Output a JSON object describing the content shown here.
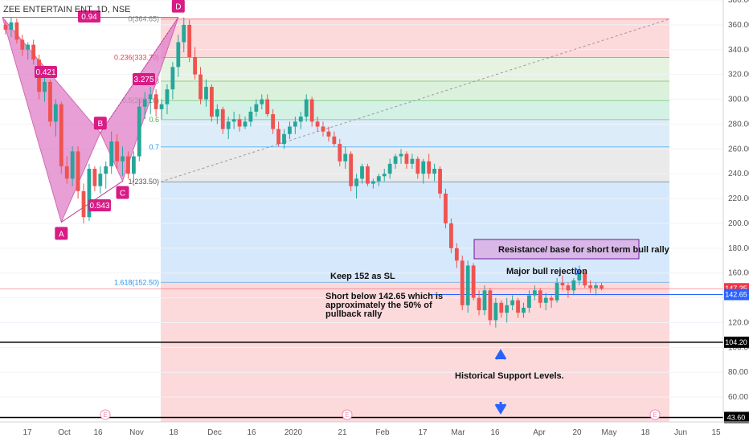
{
  "chart_data": {
    "type": "candlestick",
    "title": "ZEE ENTERTAIN ENT, 1D, NSE",
    "ylim": [
      40,
      380
    ],
    "y_ticks": [
      60,
      80,
      100,
      120,
      140,
      160,
      180,
      200,
      220,
      240,
      260,
      280,
      300,
      320,
      340,
      360,
      380
    ],
    "y_tick_labels": [
      "60.00",
      "80.00",
      "100.00",
      "120.00",
      "140.00",
      "160.00",
      "180.00",
      "200.00",
      "220.00",
      "240.00",
      "260.00",
      "280.00",
      "300.00",
      "320.00",
      "340.00",
      "360.00",
      "380.00"
    ],
    "x_ticks": [
      "17",
      "Oct",
      "16",
      "Nov",
      "18",
      "Dec",
      "16",
      "2020",
      "21",
      "Feb",
      "17",
      "Mar",
      "16",
      "Apr",
      "20",
      "May",
      "18",
      "Jun",
      "15"
    ],
    "price_tags": [
      {
        "label": "147.35",
        "value": 147.35,
        "color": "#f23645"
      },
      {
        "label": "142.65",
        "value": 142.65,
        "color": "#2962ff"
      },
      {
        "label": "104.20",
        "value": 104.2,
        "color": "#000000"
      },
      {
        "label": "43.60",
        "value": 43.6,
        "color": "#000000"
      }
    ],
    "fib_levels": [
      {
        "label": "0(364.65)",
        "value": 364.65
      },
      {
        "label": "0.236(333.70)",
        "value": 333.7
      },
      {
        "label": "0.382(314.60)",
        "value": 314.6
      },
      {
        "label": "0.5(299.10)",
        "value": 299.1
      },
      {
        "label": "0.618(283.60)",
        "value": 283.6
      },
      {
        "label": "0.786(261.60)",
        "value": 261.6
      },
      {
        "label": "1(233.50)",
        "value": 233.5
      },
      {
        "label": "1.618(152.50)",
        "value": 152.5
      }
    ],
    "fib_labels_shown": [
      "0(364.65)",
      "0.236(333.70)",
      "0.3",
      "0.5(299.10)",
      "0.6",
      "0.7",
      "1(233.50)",
      "1.618(152.50)"
    ],
    "pattern_points": [
      {
        "label": "A",
        "date_index": 10,
        "value": 201
      },
      {
        "label": "B",
        "date_index": 17,
        "value": 273
      },
      {
        "label": "C",
        "date_index": 21,
        "value": 234
      },
      {
        "label": "D",
        "date_index": 31,
        "value": 366
      }
    ],
    "ratios": [
      "0.94",
      "0.421",
      "3.275",
      "0.543"
    ],
    "annotations": {
      "sl": "Keep 152 as SL",
      "short_line1": "Short below 142.65 which is",
      "short_line2": "approximately the 50% of",
      "short_line3": "pullback rally",
      "resistance": "Resistance/ base for short term bull rally",
      "rejection": "Major bull rejection",
      "support": "Historical Support Levels."
    },
    "markers": [
      "E",
      "E",
      "E"
    ],
    "candles": [
      [
        360,
        364,
        352,
        356
      ],
      [
        356,
        366,
        350,
        362
      ],
      [
        362,
        365,
        345,
        348
      ],
      [
        348,
        352,
        335,
        340
      ],
      [
        340,
        346,
        332,
        344
      ],
      [
        344,
        348,
        328,
        332
      ],
      [
        332,
        336,
        300,
        306
      ],
      [
        306,
        318,
        298,
        314
      ],
      [
        314,
        316,
        278,
        282
      ],
      [
        282,
        300,
        270,
        296
      ],
      [
        296,
        298,
        240,
        246
      ],
      [
        246,
        254,
        232,
        236
      ],
      [
        236,
        262,
        230,
        258
      ],
      [
        258,
        262,
        220,
        226
      ],
      [
        226,
        232,
        200,
        205
      ],
      [
        205,
        248,
        202,
        244
      ],
      [
        244,
        246,
        226,
        230
      ],
      [
        230,
        246,
        224,
        240
      ],
      [
        240,
        250,
        228,
        246
      ],
      [
        246,
        274,
        240,
        266
      ],
      [
        266,
        272,
        244,
        250
      ],
      [
        250,
        262,
        238,
        254
      ],
      [
        254,
        258,
        236,
        240
      ],
      [
        240,
        258,
        233,
        254
      ],
      [
        254,
        300,
        250,
        294
      ],
      [
        294,
        306,
        284,
        300
      ],
      [
        300,
        310,
        288,
        304
      ],
      [
        304,
        308,
        286,
        292
      ],
      [
        292,
        300,
        284,
        296
      ],
      [
        296,
        312,
        288,
        308
      ],
      [
        308,
        330,
        300,
        326
      ],
      [
        326,
        352,
        318,
        346
      ],
      [
        346,
        366,
        338,
        360
      ],
      [
        360,
        364,
        330,
        334
      ],
      [
        334,
        342,
        316,
        320
      ],
      [
        320,
        326,
        296,
        300
      ],
      [
        300,
        316,
        294,
        310
      ],
      [
        310,
        312,
        282,
        286
      ],
      [
        286,
        296,
        280,
        292
      ],
      [
        292,
        294,
        272,
        276
      ],
      [
        276,
        286,
        268,
        282
      ],
      [
        282,
        290,
        276,
        284
      ],
      [
        284,
        288,
        274,
        278
      ],
      [
        278,
        286,
        276,
        282
      ],
      [
        282,
        294,
        278,
        290
      ],
      [
        290,
        300,
        286,
        296
      ],
      [
        296,
        304,
        292,
        300
      ],
      [
        300,
        304,
        286,
        288
      ],
      [
        288,
        292,
        272,
        276
      ],
      [
        276,
        282,
        262,
        264
      ],
      [
        264,
        276,
        260,
        272
      ],
      [
        272,
        282,
        268,
        278
      ],
      [
        278,
        286,
        272,
        282
      ],
      [
        282,
        290,
        276,
        286
      ],
      [
        286,
        304,
        282,
        300
      ],
      [
        300,
        302,
        278,
        282
      ],
      [
        282,
        286,
        274,
        278
      ],
      [
        278,
        282,
        270,
        274
      ],
      [
        274,
        278,
        266,
        270
      ],
      [
        270,
        274,
        262,
        264
      ],
      [
        264,
        268,
        246,
        250
      ],
      [
        250,
        262,
        244,
        256
      ],
      [
        256,
        258,
        226,
        230
      ],
      [
        230,
        240,
        220,
        236
      ],
      [
        236,
        248,
        232,
        246
      ],
      [
        246,
        248,
        230,
        232
      ],
      [
        232,
        236,
        228,
        234
      ],
      [
        234,
        240,
        230,
        238
      ],
      [
        238,
        244,
        234,
        240
      ],
      [
        240,
        252,
        236,
        248
      ],
      [
        248,
        256,
        244,
        254
      ],
      [
        254,
        260,
        248,
        256
      ],
      [
        256,
        258,
        244,
        248
      ],
      [
        248,
        256,
        244,
        252
      ],
      [
        252,
        254,
        236,
        240
      ],
      [
        240,
        252,
        232,
        250
      ],
      [
        250,
        256,
        236,
        240
      ],
      [
        240,
        248,
        234,
        244
      ],
      [
        244,
        246,
        220,
        224
      ],
      [
        224,
        228,
        196,
        200
      ],
      [
        200,
        204,
        176,
        180
      ],
      [
        180,
        184,
        164,
        170
      ],
      [
        170,
        174,
        130,
        134
      ],
      [
        134,
        170,
        128,
        166
      ],
      [
        166,
        168,
        138,
        140
      ],
      [
        140,
        146,
        126,
        130
      ],
      [
        130,
        150,
        126,
        146
      ],
      [
        146,
        148,
        118,
        122
      ],
      [
        122,
        140,
        116,
        136
      ],
      [
        136,
        138,
        124,
        128
      ],
      [
        128,
        140,
        120,
        134
      ],
      [
        134,
        142,
        130,
        138
      ],
      [
        138,
        140,
        124,
        128
      ],
      [
        128,
        136,
        124,
        132
      ],
      [
        132,
        146,
        128,
        142
      ],
      [
        142,
        150,
        138,
        146
      ],
      [
        146,
        148,
        132,
        136
      ],
      [
        136,
        144,
        130,
        140
      ],
      [
        140,
        142,
        132,
        138
      ],
      [
        138,
        156,
        136,
        152
      ],
      [
        152,
        158,
        146,
        150
      ],
      [
        150,
        152,
        140,
        146
      ],
      [
        146,
        156,
        142,
        154
      ],
      [
        154,
        166,
        150,
        160
      ],
      [
        160,
        162,
        148,
        150
      ],
      [
        150,
        154,
        144,
        148
      ],
      [
        148,
        152,
        142,
        150
      ],
      [
        150,
        152,
        146,
        147.35
      ]
    ]
  }
}
